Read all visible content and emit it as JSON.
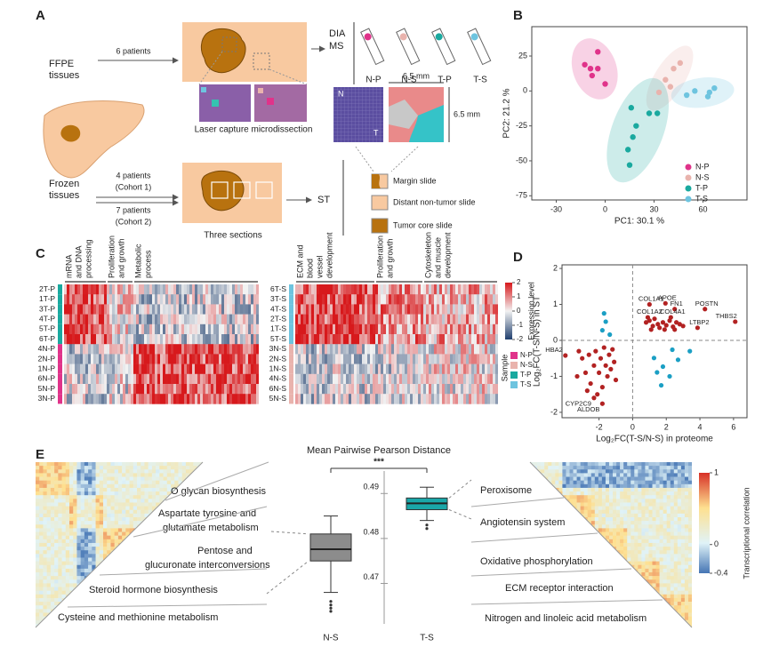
{
  "figure": {
    "panel_letters": [
      "A",
      "B",
      "C",
      "D",
      "E"
    ],
    "a": {
      "ffpe": [
        "FFPE",
        "tissues"
      ],
      "six_patients": "6 patients",
      "lcm": "Laser capture microdissection",
      "dia": [
        "DIA",
        "MS"
      ],
      "tubes": [
        "N-P",
        "N-S",
        "T-P",
        "T-S"
      ],
      "frozen": [
        "Frozen",
        "tissues"
      ],
      "cohort1": [
        "4 patients",
        "(Cohort 1)"
      ],
      "cohort2": [
        "7 patients",
        "(Cohort 2)"
      ],
      "three": "Three sections",
      "st": "ST",
      "mm_top": "6.5 mm",
      "mm_side": "6.5 mm",
      "img_letters": [
        "N",
        "T"
      ],
      "slide_legend": [
        "Margin slide",
        "Distant non-tumor slide",
        "Tumor core slide"
      ]
    },
    "c": {
      "left_rows": [
        "2T-P",
        "1T-P",
        "3T-P",
        "4T-P",
        "5T-P",
        "6T-P",
        "4N-P",
        "2N-P",
        "1N-P",
        "6N-P",
        "5N-P",
        "3N-P"
      ],
      "left_groups": [
        [
          "mRNA",
          "and DNA",
          "processing"
        ],
        [
          "Proliferation",
          "and growth"
        ],
        [
          "Metabolic",
          "process"
        ]
      ],
      "right_rows": [
        "6T-S",
        "3T-S",
        "4T-S",
        "2T-S",
        "1T-S",
        "5T-S",
        "3N-S",
        "2N-S",
        "1N-S",
        "4N-S",
        "6N-S",
        "5N-S"
      ],
      "right_groups": [
        [
          "ECM and",
          "blood",
          "vessel",
          "development"
        ],
        [
          "Proliferation",
          "and growth"
        ],
        [
          "Cytoskeleton",
          "and muscle",
          "development"
        ]
      ],
      "colorbar_title": "Expression level",
      "colorbar_ticks": [
        2,
        1,
        0,
        -1,
        -2
      ],
      "sample_title": "Sample",
      "sample_legend": [
        {
          "name": "N-P",
          "color": "#e0338a"
        },
        {
          "name": "N-S",
          "color": "#e9b3ad"
        },
        {
          "name": "T-P",
          "color": "#1aa99f"
        },
        {
          "name": "T-S",
          "color": "#6ec4df"
        }
      ]
    },
    "e": {
      "left_labels": [
        [
          "O glycan biosynthesis"
        ],
        [
          "Aspartate tyrosine and",
          "glutamate metabolism"
        ],
        [
          "Pentose and",
          "glucuronate interconversions"
        ],
        [
          "Steroid hormone biosynthesis"
        ],
        [
          "Cysteine and methionine metabolism"
        ]
      ],
      "right_labels": [
        [
          "Peroxisome"
        ],
        [
          "Angiotensin system"
        ],
        [
          "Oxidative phosphorylation"
        ],
        [
          "ECM receptor interaction"
        ],
        [
          "Nitrogen and linoleic acid metabolism"
        ]
      ],
      "colorbar_title": "Transcriptional correlation",
      "colorbar_ticks": [
        1,
        0,
        -0.4
      ]
    }
  },
  "chart_data": [
    {
      "type": "scatter",
      "xlabel": "PC1: 30.1 %",
      "ylabel": "PC2: 21.2 %",
      "xlim": [
        -45,
        87
      ],
      "ylim": [
        -78,
        46
      ],
      "xticks": [
        -30,
        0,
        30,
        60
      ],
      "yticks": [
        -75,
        -50,
        -25,
        0,
        25
      ],
      "series": [
        {
          "name": "N-P",
          "color": "#e0338a",
          "x": [
            -12.5,
            -9,
            -4.5,
            -4.5,
            0,
            -8
          ],
          "values": [
            18.8,
            16,
            28,
            16,
            5,
            11
          ]
        },
        {
          "name": "N-S",
          "color": "#e9b3ad",
          "x": [
            33,
            37,
            42,
            46,
            40
          ],
          "values": [
            -1,
            8,
            16,
            20,
            3
          ]
        },
        {
          "name": "T-P",
          "color": "#1aa99f",
          "x": [
            16,
            19,
            17,
            14,
            15,
            27,
            32
          ],
          "values": [
            -12,
            -25,
            -33,
            -42,
            -53,
            -16,
            -16
          ]
        },
        {
          "name": "T-S",
          "color": "#6ec4df",
          "x": [
            50,
            55,
            64,
            67,
            63
          ],
          "values": [
            -3,
            0,
            -1,
            2,
            -4
          ]
        }
      ]
    },
    {
      "type": "scatter",
      "xlabel": "Log₂FC(T-S/N-S) in proteome",
      "ylabel": "Log₂FC(T-S/N-S) in ST",
      "xlim": [
        -4.2,
        6.8
      ],
      "ylim": [
        -2.15,
        2.1
      ],
      "xticks": [
        -2,
        0,
        2,
        4,
        6
      ],
      "yticks": [
        -2,
        -1,
        0,
        1,
        2
      ],
      "series": [
        {
          "color": "#b22222",
          "x": [
            1.0,
            1.95,
            2.5,
            0.9,
            2.27,
            3.86,
            4.3,
            6.1,
            -4.0,
            -2.3,
            -1.8,
            0.8,
            1.0,
            1.2,
            1.3,
            1.5,
            1.6,
            1.8,
            2.0,
            2.2,
            2.4,
            2.6,
            2.8,
            3.0,
            1.1,
            1.9,
            2.5,
            -3.2,
            -3.0,
            -2.8,
            -2.6,
            -2.5,
            -2.3,
            -2.2,
            -2.0,
            -1.9,
            -1.8,
            -1.7,
            -1.6,
            -1.5,
            -1.4,
            -1.3,
            -1.2,
            -1.1,
            -1.0,
            -2.7,
            -3.3,
            -2.1
          ],
          "values": [
            1.0,
            1.03,
            0.87,
            0.64,
            0.64,
            0.35,
            0.87,
            0.52,
            -0.42,
            -1.6,
            -1.76,
            0.5,
            0.55,
            0.4,
            0.6,
            0.45,
            0.35,
            0.5,
            0.42,
            0.55,
            0.38,
            0.5,
            0.45,
            0.4,
            0.3,
            0.3,
            0.3,
            -0.3,
            -0.5,
            -0.9,
            -0.4,
            -1.2,
            -0.7,
            -0.3,
            -0.9,
            -0.5,
            -1.3,
            -0.2,
            -0.7,
            -1.0,
            -0.4,
            -0.8,
            -0.25,
            -0.6,
            -1.1,
            -1.4,
            -1.0,
            -1.5
          ],
          "point_labels": [
            "COL1A1",
            "APOE",
            "FN1",
            "COL1A2",
            "COL4A1",
            "LTBP2",
            "POSTN",
            "THBS2",
            "HBA2",
            "CYP2C9",
            "ALDOB",
            null,
            null,
            null,
            null,
            null,
            null,
            null,
            null,
            null,
            null,
            null,
            null,
            null,
            null,
            null,
            null,
            null,
            null,
            null,
            null,
            null,
            null,
            null,
            null,
            null,
            null,
            null,
            null,
            null,
            null,
            null,
            null,
            null,
            null,
            null,
            null,
            null
          ]
        },
        {
          "color": "#1b9fc4",
          "x": [
            -1.7,
            -1.6,
            -1.8,
            -1.36,
            1.27,
            1.45,
            1.8,
            2.2,
            2.36,
            2.7,
            3.4,
            1.7
          ],
          "values": [
            0.75,
            0.52,
            0.28,
            0.16,
            -0.49,
            -0.89,
            -0.73,
            -1.0,
            -0.26,
            -0.54,
            -0.3,
            -1.25
          ]
        }
      ]
    },
    {
      "type": "box",
      "title": "Mean Pairwise Pearson Distance",
      "annotation": "***",
      "categories": [
        "N-S",
        "T-S"
      ],
      "ylim": [
        0.461,
        0.495
      ],
      "yticks": [
        0.47,
        0.48,
        0.49
      ],
      "series": [
        {
          "color": "#8c8c8c",
          "whisker_low": 0.468,
          "q1": 0.475,
          "median": 0.4776,
          "q3": 0.481,
          "whisker_high": 0.485,
          "outliers": [
            0.466,
            0.4652,
            0.4645,
            0.4638
          ]
        },
        {
          "color": "#1aa7a8",
          "whisker_low": 0.484,
          "q1": 0.4864,
          "median": 0.4878,
          "q3": 0.489,
          "whisker_high": 0.4914,
          "outliers": [
            0.483,
            0.4822
          ]
        }
      ]
    }
  ]
}
